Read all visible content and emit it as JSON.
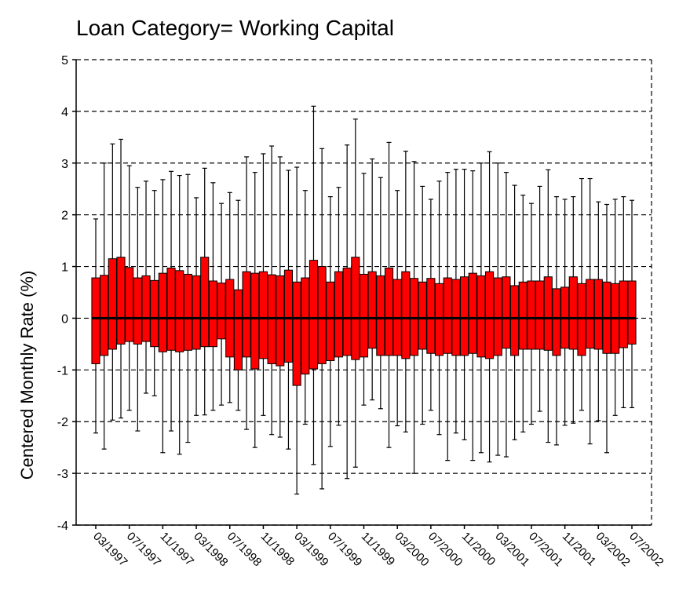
{
  "chart_data": {
    "type": "box",
    "title": "Loan Category= Working Capital",
    "y_label": "Centered Monthly Rate (%)",
    "categories": [
      "03/1997",
      null,
      null,
      null,
      "07/1997",
      null,
      null,
      null,
      "11/1997",
      null,
      null,
      null,
      "03/1998",
      null,
      null,
      null,
      "07/1998",
      null,
      null,
      null,
      "11/1998",
      null,
      null,
      null,
      "03/1999",
      null,
      null,
      null,
      "07/1999",
      null,
      null,
      null,
      "11/1999",
      null,
      null,
      null,
      "03/2000",
      null,
      null,
      null,
      "07/2000",
      null,
      null,
      null,
      "11/2000",
      null,
      null,
      null,
      "03/2001",
      null,
      null,
      null,
      "07/2001",
      null,
      null,
      null,
      "11/2001",
      null,
      null,
      null,
      "03/2002",
      null,
      null,
      null,
      "07/2002"
    ],
    "whisker_high": [
      1.92,
      3.0,
      3.37,
      3.46,
      2.95,
      2.53,
      2.65,
      2.47,
      2.68,
      2.84,
      2.76,
      2.78,
      2.33,
      2.9,
      2.62,
      2.22,
      2.43,
      2.28,
      3.12,
      2.82,
      3.18,
      3.33,
      3.12,
      2.86,
      2.92,
      2.47,
      4.1,
      3.28,
      2.35,
      2.53,
      3.35,
      3.85,
      2.8,
      3.08,
      2.72,
      3.4,
      2.47,
      3.23,
      3.03,
      2.55,
      2.3,
      2.65,
      2.82,
      2.88,
      2.88,
      2.85,
      3.0,
      3.22,
      3.0,
      2.82,
      2.57,
      2.38,
      2.22,
      2.55,
      2.87,
      2.35,
      2.3,
      2.35,
      2.7,
      2.7,
      2.25,
      2.2,
      2.3,
      2.35,
      2.28
    ],
    "q3": [
      0.78,
      0.83,
      1.15,
      1.18,
      0.98,
      0.78,
      0.82,
      0.73,
      0.87,
      0.97,
      0.92,
      0.85,
      0.82,
      1.18,
      0.72,
      0.68,
      0.75,
      0.55,
      0.9,
      0.87,
      0.9,
      0.84,
      0.82,
      0.93,
      0.7,
      0.78,
      1.12,
      1.0,
      0.7,
      0.9,
      0.97,
      1.18,
      0.85,
      0.9,
      0.82,
      0.97,
      0.75,
      0.9,
      0.77,
      0.7,
      0.77,
      0.67,
      0.78,
      0.75,
      0.8,
      0.87,
      0.82,
      0.9,
      0.78,
      0.8,
      0.63,
      0.7,
      0.72,
      0.72,
      0.8,
      0.57,
      0.6,
      0.8,
      0.67,
      0.75,
      0.75,
      0.7,
      0.67,
      0.72,
      0.72
    ],
    "median": [
      0,
      0,
      0,
      0,
      0,
      0,
      0,
      0,
      0,
      0,
      0,
      0,
      0,
      0,
      0,
      0,
      0,
      0,
      0,
      0,
      0,
      0,
      0,
      0,
      0,
      0,
      0,
      0,
      0,
      0,
      0,
      0,
      0,
      0,
      0,
      0,
      0,
      0,
      0,
      0,
      0,
      0,
      0,
      0,
      0,
      0,
      0,
      0,
      0,
      0,
      0,
      0,
      0,
      0,
      0,
      0,
      0,
      0,
      0,
      0,
      0,
      0,
      0,
      0,
      0
    ],
    "q1": [
      -0.88,
      -0.72,
      -0.6,
      -0.5,
      -0.45,
      -0.5,
      -0.45,
      -0.55,
      -0.65,
      -0.62,
      -0.65,
      -0.62,
      -0.6,
      -0.55,
      -0.55,
      -0.4,
      -0.75,
      -1.0,
      -0.75,
      -0.98,
      -0.78,
      -0.88,
      -0.92,
      -0.85,
      -1.3,
      -1.08,
      -0.98,
      -0.88,
      -0.82,
      -0.75,
      -0.72,
      -0.8,
      -0.75,
      -0.58,
      -0.72,
      -0.72,
      -0.72,
      -0.78,
      -0.72,
      -0.6,
      -0.68,
      -0.72,
      -0.68,
      -0.72,
      -0.72,
      -0.68,
      -0.75,
      -0.78,
      -0.72,
      -0.58,
      -0.72,
      -0.6,
      -0.6,
      -0.6,
      -0.62,
      -0.72,
      -0.58,
      -0.6,
      -0.72,
      -0.58,
      -0.6,
      -0.68,
      -0.68,
      -0.57,
      -0.5
    ],
    "whisker_low": [
      -2.22,
      -2.53,
      -1.97,
      -1.93,
      -1.78,
      -2.18,
      -1.45,
      -1.5,
      -2.6,
      -2.18,
      -2.63,
      -2.4,
      -1.88,
      -1.87,
      -1.78,
      -1.68,
      -1.63,
      -1.78,
      -2.15,
      -2.5,
      -1.88,
      -2.25,
      -2.3,
      -2.53,
      -3.4,
      -2.05,
      -2.83,
      -3.3,
      -2.48,
      -2.07,
      -3.1,
      -2.88,
      -1.68,
      -1.58,
      -1.75,
      -2.5,
      -2.08,
      -2.2,
      -3.0,
      -2.05,
      -1.78,
      -2.25,
      -2.75,
      -2.22,
      -2.35,
      -2.75,
      -2.6,
      -2.78,
      -2.65,
      -2.68,
      -2.35,
      -2.2,
      -2.05,
      -1.8,
      -2.4,
      -2.45,
      -2.07,
      -2.03,
      -1.78,
      -2.43,
      -1.98,
      -2.6,
      -1.88,
      -1.73,
      -1.73
    ],
    "color": "#ff0000",
    "ylim": [
      -4,
      5
    ],
    "yticks": [
      -4,
      -3,
      -2,
      -1,
      0,
      1,
      2,
      3,
      4,
      5
    ],
    "grid": true
  }
}
